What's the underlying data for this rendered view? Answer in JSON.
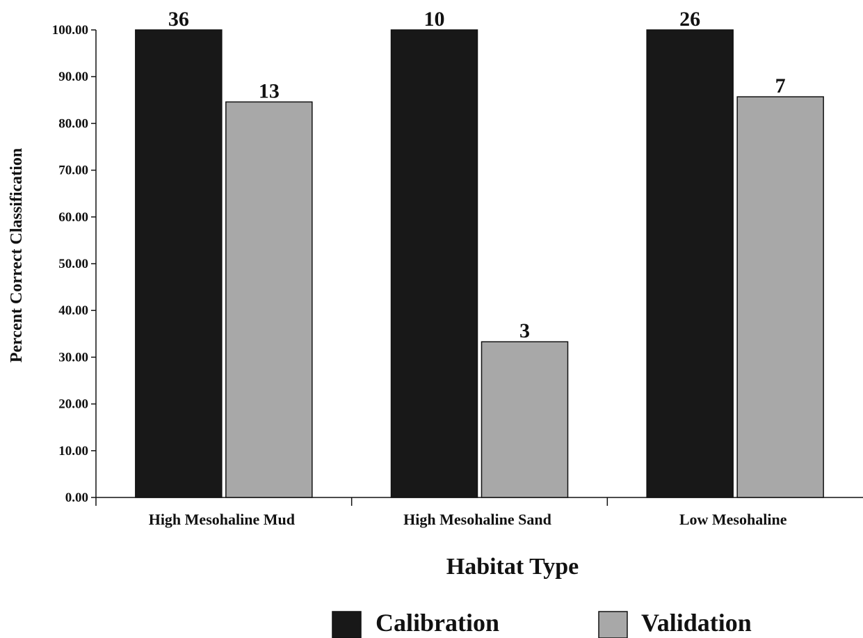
{
  "chart_data": {
    "type": "bar",
    "title": "",
    "xlabel": "Habitat Type",
    "ylabel": "Percent Correct Classification",
    "categories": [
      "High Mesohaline Mud",
      "High Mesohaline Sand",
      "Low Mesohaline"
    ],
    "series": [
      {
        "name": "Calibration",
        "color": "#181818",
        "values": [
          100.0,
          100.0,
          100.0
        ],
        "labels": [
          "36",
          "10",
          "26"
        ]
      },
      {
        "name": "Validation",
        "color": "#a8a8a8",
        "values": [
          84.6,
          33.3,
          85.7
        ],
        "labels": [
          "13",
          "3",
          "7"
        ]
      }
    ],
    "ylim": [
      0,
      100
    ],
    "yticks": [
      "0.00",
      "10.00",
      "20.00",
      "30.00",
      "40.00",
      "50.00",
      "60.00",
      "70.00",
      "80.00",
      "90.00",
      "100.00"
    ],
    "grid": false,
    "legend_position": "bottom"
  }
}
